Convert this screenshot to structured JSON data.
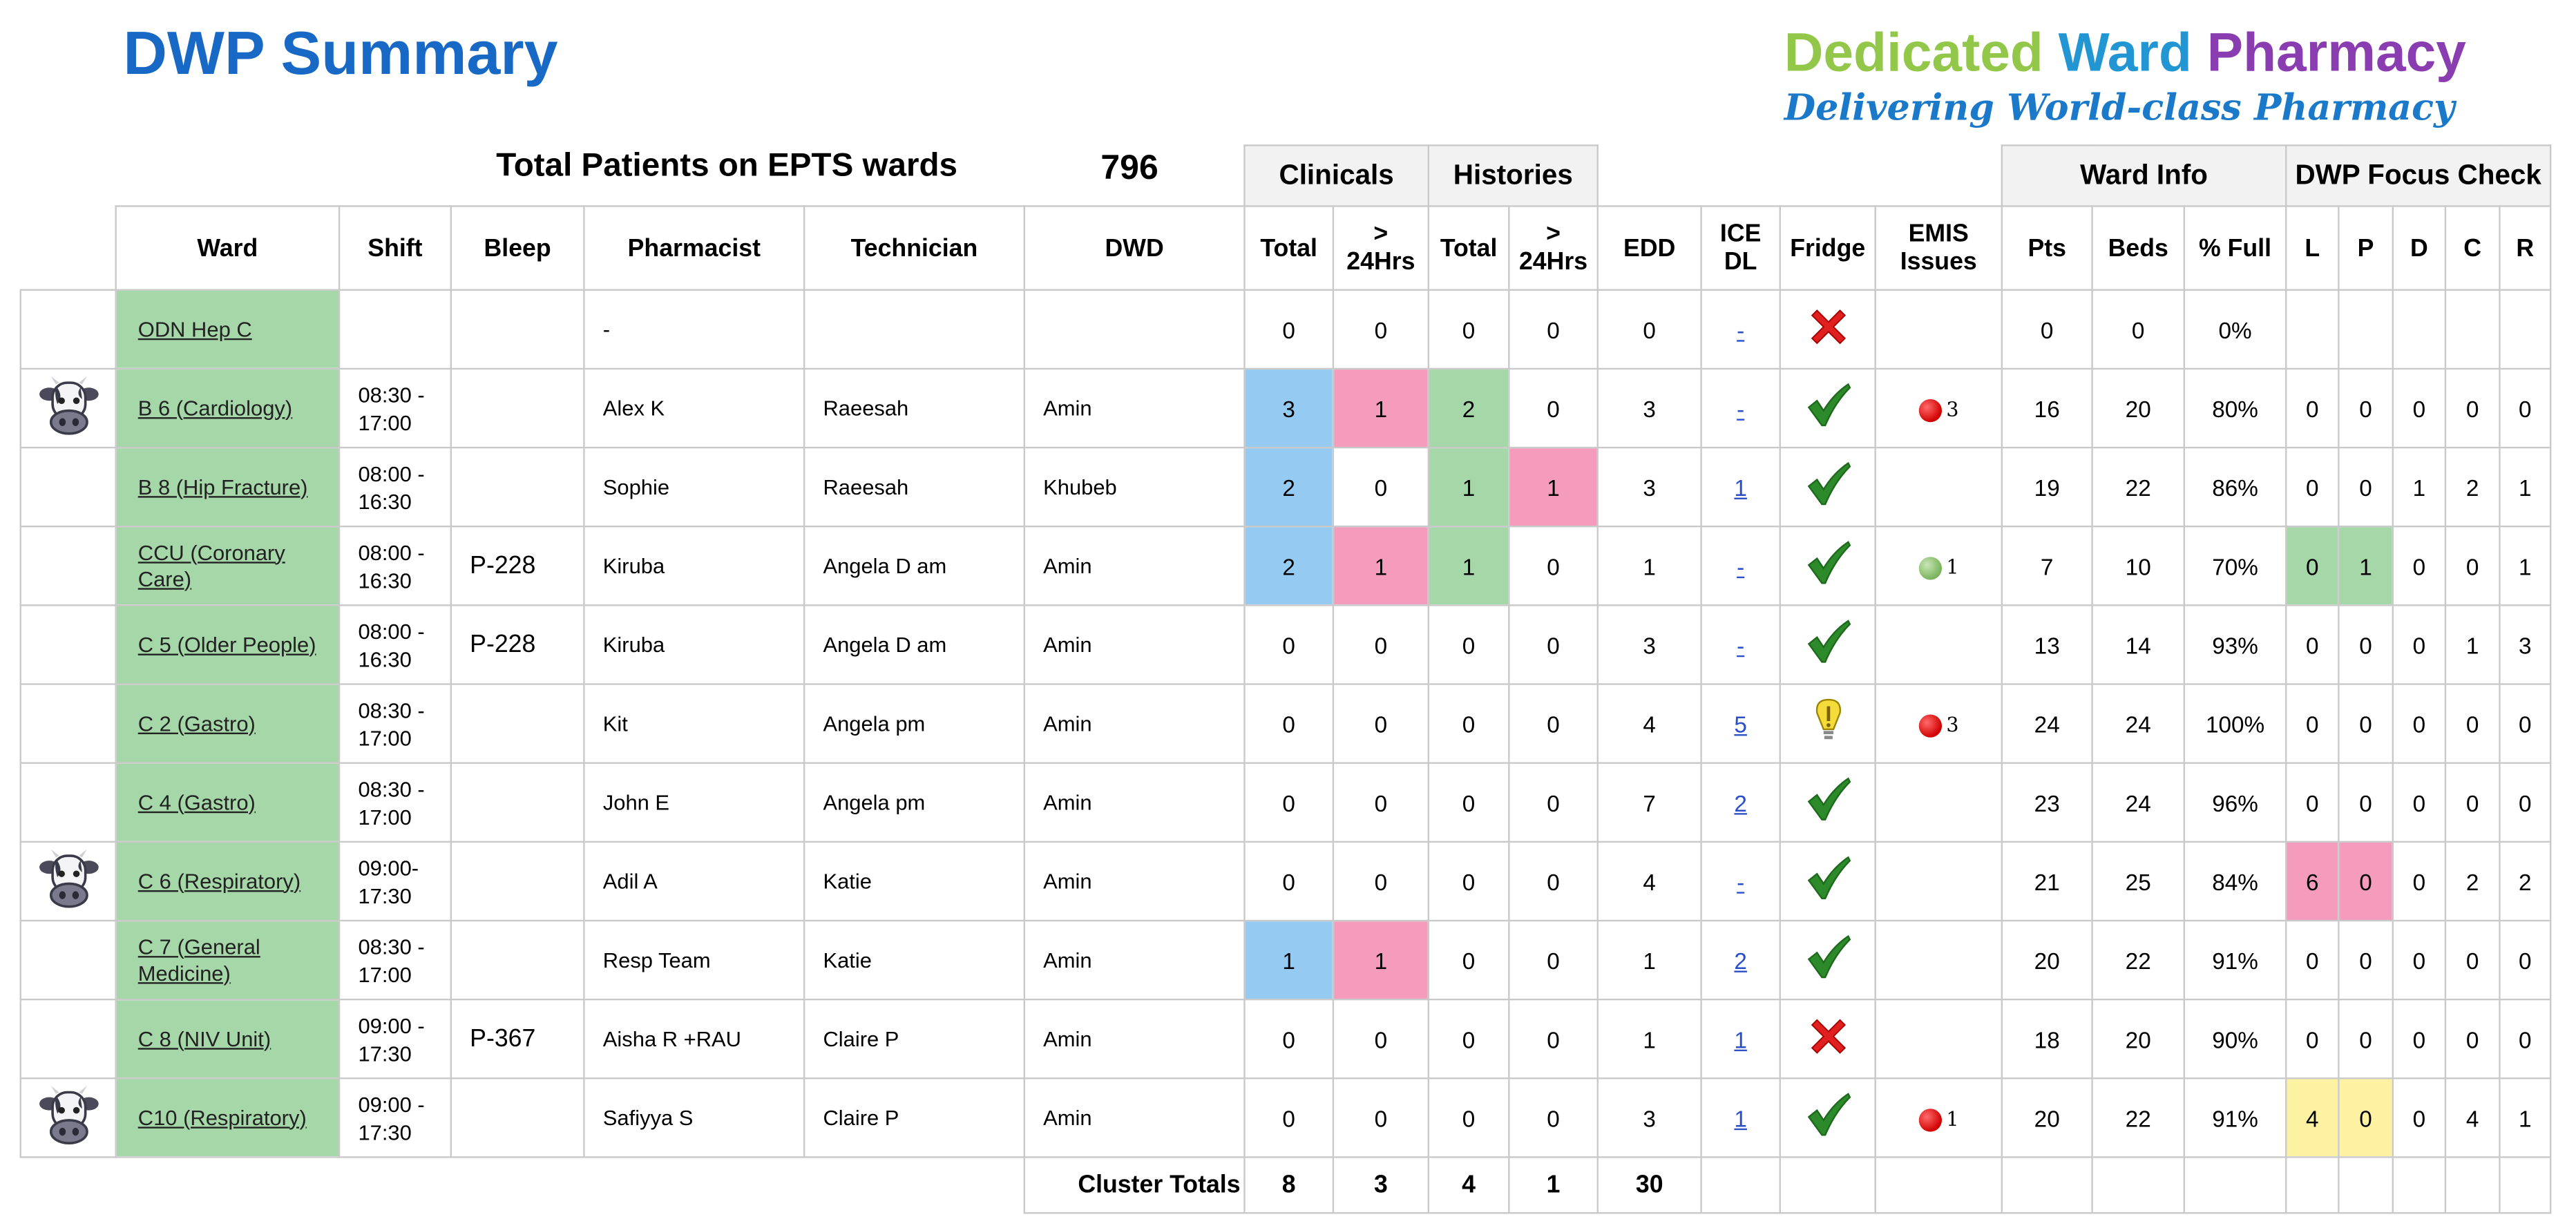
{
  "header": {
    "title": "DWP Summary",
    "logo_line1_words": [
      "Dedicated",
      "Ward",
      "Pharmacy"
    ],
    "logo_line1_colors": [
      "#92c74a",
      "#2196d3",
      "#8a3db0"
    ],
    "logo_line2": "Delivering World-class Pharmacy",
    "total_label": "Total Patients on EPTS wards",
    "total_value": "796"
  },
  "groups": {
    "clinicals": "Clinicals",
    "histories": "Histories",
    "ward_info": "Ward Info",
    "focus_check": "DWP Focus Check"
  },
  "columns": {
    "ward": "Ward",
    "shift": "Shift",
    "bleep": "Bleep",
    "pharmacist": "Pharmacist",
    "technician": "Technician",
    "dwd": "DWD",
    "clin_total": "Total",
    "clin_24": ">\n24Hrs",
    "hist_total": "Total",
    "hist_24": ">\n24Hrs",
    "edd": "EDD",
    "ice_dl": "ICE\nDL",
    "fridge": "Fridge",
    "emis": "EMIS\nIssues",
    "pts": "Pts",
    "beds": "Beds",
    "full": "% Full",
    "l": "L",
    "p": "P",
    "d": "D",
    "c": "C",
    "r": "R"
  },
  "colors": {
    "blue": "#95cbf3",
    "pink": "#f59bbb",
    "green": "#a6d7a8",
    "yellow": "#fdf2a1",
    "title_blue": "#1769c5",
    "header_grey": "#f2f2f2"
  },
  "rows": [
    {
      "cow": false,
      "ward": "ODN Hep C",
      "shift": "",
      "bleep": "",
      "pharmacist": "-",
      "technician": "",
      "dwd": "",
      "clin_total": "0",
      "clin_24": "0",
      "hist_total": "0",
      "hist_24": "0",
      "edd": "0",
      "ice": "-",
      "fridge": "cross",
      "emis_dot": "",
      "emis": "",
      "pts": "0",
      "beds": "0",
      "full": "0%",
      "l": "",
      "p": "",
      "d": "",
      "c": "",
      "r": "",
      "hl": {}
    },
    {
      "cow": true,
      "ward": "B 6 (Cardiology)",
      "shift": "08:30 -\n17:00",
      "bleep": "",
      "pharmacist": "Alex K",
      "technician": "Raeesah",
      "dwd": "Amin",
      "clin_total": "3",
      "clin_24": "1",
      "hist_total": "2",
      "hist_24": "0",
      "edd": "3",
      "ice": "-",
      "fridge": "tick",
      "emis_dot": "red",
      "emis": "3",
      "pts": "16",
      "beds": "20",
      "full": "80%",
      "l": "0",
      "p": "0",
      "d": "0",
      "c": "0",
      "r": "0",
      "hl": {
        "clin_total": "blue",
        "clin_24": "pink",
        "hist_total": "green"
      }
    },
    {
      "cow": false,
      "ward": "B 8 (Hip Fracture)",
      "shift": "08:00 -\n16:30",
      "bleep": "",
      "pharmacist": "Sophie",
      "technician": "Raeesah",
      "dwd": "Khubeb",
      "clin_total": "2",
      "clin_24": "0",
      "hist_total": "1",
      "hist_24": "1",
      "edd": "3",
      "ice": "1",
      "fridge": "tick",
      "emis_dot": "",
      "emis": "",
      "pts": "19",
      "beds": "22",
      "full": "86%",
      "l": "0",
      "p": "0",
      "d": "1",
      "c": "2",
      "r": "1",
      "hl": {
        "clin_total": "blue",
        "hist_total": "green",
        "hist_24": "pink"
      }
    },
    {
      "cow": false,
      "ward": "CCU (Coronary Care)",
      "shift": "08:00 -\n16:30",
      "bleep": "P-228",
      "pharmacist": "Kiruba",
      "technician": "Angela D am",
      "dwd": "Amin",
      "clin_total": "2",
      "clin_24": "1",
      "hist_total": "1",
      "hist_24": "0",
      "edd": "1",
      "ice": "-",
      "fridge": "tick",
      "emis_dot": "green",
      "emis": "1",
      "pts": "7",
      "beds": "10",
      "full": "70%",
      "l": "0",
      "p": "1",
      "d": "0",
      "c": "0",
      "r": "1",
      "hl": {
        "clin_total": "blue",
        "clin_24": "pink",
        "hist_total": "green",
        "l": "green",
        "p": "green"
      }
    },
    {
      "cow": false,
      "ward": "C 5 (Older People)",
      "shift": "08:00 -\n16:30",
      "bleep": "P-228",
      "pharmacist": "Kiruba",
      "technician": "Angela D am",
      "dwd": "Amin",
      "clin_total": "0",
      "clin_24": "0",
      "hist_total": "0",
      "hist_24": "0",
      "edd": "3",
      "ice": "-",
      "fridge": "tick",
      "emis_dot": "",
      "emis": "",
      "pts": "13",
      "beds": "14",
      "full": "93%",
      "l": "0",
      "p": "0",
      "d": "0",
      "c": "1",
      "r": "3",
      "hl": {}
    },
    {
      "cow": false,
      "ward": "C 2 (Gastro)",
      "shift": "08:30 -\n17:00",
      "bleep": "",
      "pharmacist": "Kit",
      "technician": "Angela pm",
      "dwd": "Amin",
      "clin_total": "0",
      "clin_24": "0",
      "hist_total": "0",
      "hist_24": "0",
      "edd": "4",
      "ice": "5",
      "fridge": "warning",
      "emis_dot": "red",
      "emis": "3",
      "pts": "24",
      "beds": "24",
      "full": "100%",
      "l": "0",
      "p": "0",
      "d": "0",
      "c": "0",
      "r": "0",
      "hl": {}
    },
    {
      "cow": false,
      "ward": "C 4 (Gastro)",
      "shift": "08:30 -\n17:00",
      "bleep": "",
      "pharmacist": "John E",
      "technician": "Angela pm",
      "dwd": "Amin",
      "clin_total": "0",
      "clin_24": "0",
      "hist_total": "0",
      "hist_24": "0",
      "edd": "7",
      "ice": "2",
      "fridge": "tick",
      "emis_dot": "",
      "emis": "",
      "pts": "23",
      "beds": "24",
      "full": "96%",
      "l": "0",
      "p": "0",
      "d": "0",
      "c": "0",
      "r": "0",
      "hl": {}
    },
    {
      "cow": true,
      "ward": "C 6 (Respiratory)",
      "shift": "09:00-\n17:30",
      "bleep": "",
      "pharmacist": "Adil A",
      "technician": "Katie",
      "dwd": "Amin",
      "clin_total": "0",
      "clin_24": "0",
      "hist_total": "0",
      "hist_24": "0",
      "edd": "4",
      "ice": "-",
      "fridge": "tick",
      "emis_dot": "",
      "emis": "",
      "pts": "21",
      "beds": "25",
      "full": "84%",
      "l": "6",
      "p": "0",
      "d": "0",
      "c": "2",
      "r": "2",
      "hl": {
        "l": "pink",
        "p": "pink"
      }
    },
    {
      "cow": false,
      "ward": "C 7 (General Medicine)",
      "shift": "08:30 -\n17:00",
      "bleep": "",
      "pharmacist": "Resp Team",
      "technician": "Katie",
      "dwd": "Amin",
      "clin_total": "1",
      "clin_24": "1",
      "hist_total": "0",
      "hist_24": "0",
      "edd": "1",
      "ice": "2",
      "fridge": "tick",
      "emis_dot": "",
      "emis": "",
      "pts": "20",
      "beds": "22",
      "full": "91%",
      "l": "0",
      "p": "0",
      "d": "0",
      "c": "0",
      "r": "0",
      "hl": {
        "clin_total": "blue",
        "clin_24": "pink"
      }
    },
    {
      "cow": false,
      "ward": "C 8 (NIV Unit)",
      "shift": "09:00 -\n17:30",
      "bleep": "P-367",
      "pharmacist": "Aisha R +RAU",
      "technician": "Claire P",
      "dwd": "Amin",
      "clin_total": "0",
      "clin_24": "0",
      "hist_total": "0",
      "hist_24": "0",
      "edd": "1",
      "ice": "1",
      "fridge": "cross",
      "emis_dot": "",
      "emis": "",
      "pts": "18",
      "beds": "20",
      "full": "90%",
      "l": "0",
      "p": "0",
      "d": "0",
      "c": "0",
      "r": "0",
      "hl": {}
    },
    {
      "cow": true,
      "ward": "C10 (Respiratory)",
      "shift": "09:00 -\n17:30",
      "bleep": "",
      "pharmacist": "Safiyya S",
      "technician": "Claire P",
      "dwd": "Amin",
      "clin_total": "0",
      "clin_24": "0",
      "hist_total": "0",
      "hist_24": "0",
      "edd": "3",
      "ice": "1",
      "fridge": "tick",
      "emis_dot": "red",
      "emis": "1",
      "pts": "20",
      "beds": "22",
      "full": "91%",
      "l": "4",
      "p": "0",
      "d": "0",
      "c": "4",
      "r": "1",
      "hl": {
        "l": "yellow",
        "p": "yellow"
      }
    }
  ],
  "totals": {
    "label": "Cluster Totals",
    "clin_total": "8",
    "clin_24": "3",
    "hist_total": "4",
    "hist_24": "1",
    "edd": "30"
  },
  "icons": {
    "cow": "cow-icon",
    "tick": "tick-icon",
    "cross": "cross-icon",
    "warning": "warning-icon",
    "emis_red": "red-dot-icon",
    "emis_green": "green-dot-icon"
  }
}
